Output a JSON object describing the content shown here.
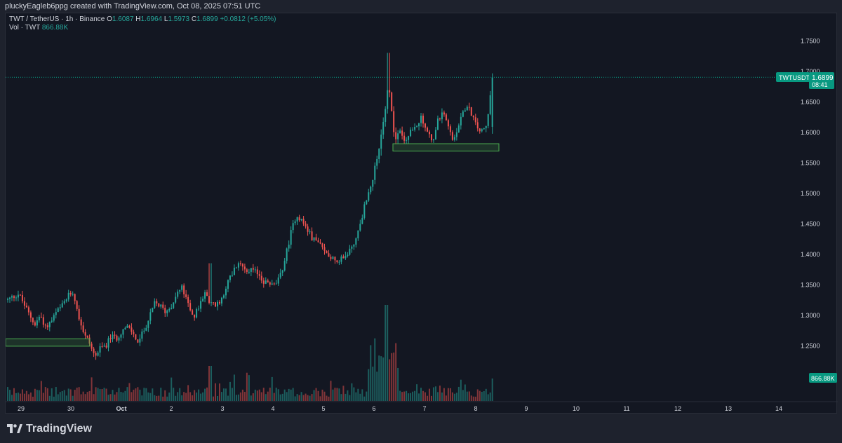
{
  "header": {
    "creator_line": "pluckyEagleb6ppg created with TradingView.com, Oct 08, 2025 07:51 UTC"
  },
  "legend": {
    "symbol": "TWT / TetherUS · 1h · Binance",
    "open_label": "O",
    "open": "1.6087",
    "high_label": "H",
    "high": "1.6964",
    "low_label": "L",
    "low": "1.5973",
    "close_label": "C",
    "close": "1.6899",
    "change": "+0.0812 (+5.05%)",
    "volume_label": "Vol · TWT",
    "volume": "866.88K"
  },
  "price_axis": {
    "ticks": [
      "1.7500",
      "1.7000",
      "1.6500",
      "1.6000",
      "1.5500",
      "1.5000",
      "1.4500",
      "1.4000",
      "1.3500",
      "1.3000",
      "1.2500"
    ]
  },
  "current_price_tag": {
    "symbol": "TWTUSDT",
    "price": "1.6899",
    "countdown": "08:41"
  },
  "volume_tag": "866.88K",
  "time_axis": {
    "ticks": [
      "29",
      "30",
      "Oct",
      "2",
      "3",
      "4",
      "5",
      "6",
      "7",
      "8",
      "9",
      "10",
      "11",
      "12",
      "13",
      "14"
    ]
  },
  "colors": {
    "background": "#131722",
    "up": "#26a69a",
    "down": "#ef5350",
    "zone": "#4caf50",
    "tag": "#089981"
  },
  "footer": {
    "brand": "TradingView"
  },
  "chart_data": {
    "type": "candlestick",
    "symbol": "TWT / TetherUS",
    "interval": "1h",
    "exchange": "Binance",
    "ylim": [
      1.21,
      1.77
    ],
    "y_ticks": [
      1.25,
      1.3,
      1.35,
      1.4,
      1.45,
      1.5,
      1.55,
      1.6,
      1.65,
      1.7,
      1.75
    ],
    "last_price": 1.6899,
    "x_ticks": [
      "29",
      "30",
      "Oct",
      "2",
      "3",
      "4",
      "5",
      "6",
      "7",
      "8",
      "9",
      "10",
      "11",
      "12",
      "13",
      "14"
    ],
    "price_path": [
      [
        0,
        1.325
      ],
      [
        2,
        1.335
      ],
      [
        4,
        1.3
      ],
      [
        5,
        1.285
      ],
      [
        6,
        1.3
      ],
      [
        7,
        1.28
      ],
      [
        8,
        1.29
      ],
      [
        9,
        1.305
      ],
      [
        10,
        1.315
      ],
      [
        11,
        1.33
      ],
      [
        12,
        1.34
      ],
      [
        13,
        1.3
      ],
      [
        14,
        1.27
      ],
      [
        15,
        1.255
      ],
      [
        16,
        1.232
      ],
      [
        17,
        1.245
      ],
      [
        18,
        1.25
      ],
      [
        19,
        1.265
      ],
      [
        20,
        1.262
      ],
      [
        21,
        1.275
      ],
      [
        22,
        1.28
      ],
      [
        23,
        1.27
      ],
      [
        24,
        1.255
      ],
      [
        25,
        1.275
      ],
      [
        26,
        1.295
      ],
      [
        27,
        1.32
      ],
      [
        28,
        1.315
      ],
      [
        29,
        1.305
      ],
      [
        30,
        1.315
      ],
      [
        31,
        1.335
      ],
      [
        32,
        1.345
      ],
      [
        33,
        1.32
      ],
      [
        34,
        1.295
      ],
      [
        35,
        1.31
      ],
      [
        36,
        1.335
      ],
      [
        37,
        1.325
      ],
      [
        38,
        1.315
      ],
      [
        39,
        1.32
      ],
      [
        40,
        1.345
      ],
      [
        41,
        1.365
      ],
      [
        42,
        1.38
      ],
      [
        43,
        1.383
      ],
      [
        44,
        1.375
      ],
      [
        45,
        1.372
      ],
      [
        46,
        1.368
      ],
      [
        47,
        1.355
      ],
      [
        48,
        1.352
      ],
      [
        49,
        1.348
      ],
      [
        50,
        1.362
      ],
      [
        51,
        1.395
      ],
      [
        52,
        1.435
      ],
      [
        53,
        1.465
      ],
      [
        54,
        1.455
      ],
      [
        55,
        1.44
      ],
      [
        56,
        1.425
      ],
      [
        57,
        1.42
      ],
      [
        58,
        1.405
      ],
      [
        59,
        1.398
      ],
      [
        60,
        1.392
      ],
      [
        61,
        1.39
      ],
      [
        62,
        1.396
      ],
      [
        63,
        1.41
      ],
      [
        64,
        1.425
      ],
      [
        65,
        1.46
      ],
      [
        66,
        1.495
      ],
      [
        67,
        1.525
      ],
      [
        68,
        1.56
      ],
      [
        69,
        1.62
      ],
      [
        70,
        1.68
      ],
      [
        71,
        1.59
      ],
      [
        72,
        1.6
      ],
      [
        73,
        1.585
      ],
      [
        74,
        1.6
      ],
      [
        75,
        1.61
      ],
      [
        76,
        1.625
      ],
      [
        77,
        1.6
      ],
      [
        78,
        1.585
      ],
      [
        79,
        1.62
      ],
      [
        80,
        1.63
      ],
      [
        81,
        1.605
      ],
      [
        82,
        1.585
      ],
      [
        83,
        1.62
      ],
      [
        84,
        1.64
      ],
      [
        85,
        1.635
      ],
      [
        86,
        1.61
      ],
      [
        87,
        1.6
      ],
      [
        88,
        1.61
      ],
      [
        89,
        1.6899
      ]
    ],
    "support_zones": [
      {
        "from": 1.249,
        "to": 1.261,
        "x_start": "Sep 28",
        "x_end": "Sep 30"
      },
      {
        "from": 1.569,
        "to": 1.581,
        "x_start": "Oct 6",
        "x_end": "Oct 8"
      }
    ]
  }
}
